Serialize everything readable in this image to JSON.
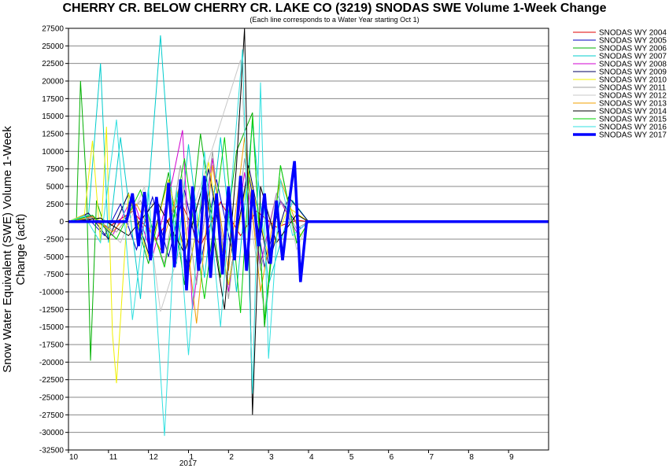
{
  "chart_data": {
    "type": "line",
    "title": "CHERRY CR. BELOW CHERRY CR. LAKE CO (3219) SNODAS SWE Volume 1-Week Change",
    "subtitle": "(Each line corresponds to a Water Year starting Oct 1)",
    "ylabel": "Snow Water Equivalent (SWE) Volume 1-Week Change (acft)",
    "xlabel": "",
    "x_tick_labels": [
      "10",
      "11",
      "12",
      "1",
      "2",
      "3",
      "4",
      "5",
      "6",
      "7",
      "8",
      "9"
    ],
    "x_year_label": "2017",
    "ylim": [
      -32500,
      27500
    ],
    "y_ticks": [
      27500,
      25000,
      22500,
      20000,
      17500,
      15000,
      12500,
      10000,
      7500,
      5000,
      2500,
      0,
      -2500,
      -5000,
      -7500,
      -10000,
      -12500,
      -15000,
      -17500,
      -20000,
      -22500,
      -25000,
      -27500,
      -30000,
      -32500
    ],
    "grid": true,
    "legend_placement": "top-right",
    "series": [
      {
        "name": "SNODAS WY 2004",
        "color": "#e00000",
        "x": [
          0.0,
          0.5,
          1.0,
          1.6,
          2.2,
          2.8,
          3.3,
          3.8,
          4.3,
          4.7,
          5.2,
          5.7,
          6.0,
          12.0
        ],
        "values": [
          0,
          300,
          -800,
          1500,
          -2500,
          3000,
          -3500,
          2800,
          -2000,
          1500,
          -800,
          200,
          0,
          0
        ]
      },
      {
        "name": "SNODAS WY 2005",
        "color": "#0000c0",
        "x": [
          0.0,
          0.4,
          0.9,
          1.3,
          1.7,
          2.1,
          2.5,
          2.9,
          3.3,
          3.7,
          4.1,
          4.5,
          4.9,
          5.3,
          5.8,
          6.0,
          12.0
        ],
        "values": [
          0,
          1000,
          -2000,
          2500,
          -4000,
          3500,
          -5000,
          4500,
          -6000,
          6000,
          -4500,
          7000,
          -6500,
          3000,
          -1000,
          0,
          0
        ]
      },
      {
        "name": "SNODAS WY 2006",
        "color": "#00b000",
        "x": [
          0.0,
          0.2,
          0.3,
          0.45,
          0.55,
          0.7,
          1.0,
          1.5,
          2.0,
          2.5,
          2.9,
          3.3,
          3.8,
          4.2,
          4.6,
          4.9,
          5.3,
          5.7,
          6.0,
          12.0
        ],
        "values": [
          0,
          500,
          20000,
          5000,
          -19800,
          3000,
          -2500,
          4000,
          -6000,
          7000,
          -9000,
          12500,
          -8000,
          10000,
          15500,
          -15000,
          8000,
          -3000,
          0,
          0
        ]
      },
      {
        "name": "SNODAS WY 2007",
        "color": "#00cccc",
        "x": [
          0.0,
          0.5,
          0.8,
          1.0,
          1.3,
          1.8,
          2.3,
          2.7,
          3.0,
          3.4,
          3.8,
          4.2,
          4.6,
          5.0,
          5.6,
          6.0,
          12.0
        ],
        "values": [
          0,
          800,
          22500,
          -3000,
          12000,
          -11000,
          26500,
          -6000,
          11000,
          -8000,
          12000,
          -10000,
          14000,
          -9000,
          3000,
          0,
          0
        ]
      },
      {
        "name": "SNODAS WY 2008",
        "color": "#d000d0",
        "x": [
          0.0,
          0.6,
          1.1,
          1.6,
          2.1,
          2.6,
          2.85,
          3.1,
          3.6,
          4.0,
          4.4,
          4.8,
          5.2,
          5.7,
          6.0,
          12.0
        ],
        "values": [
          0,
          800,
          -2000,
          3500,
          -5000,
          6000,
          13000,
          -12500,
          9000,
          -10000,
          7000,
          -6000,
          4000,
          -1500,
          0,
          0
        ]
      },
      {
        "name": "SNODAS WY 2009",
        "color": "#000060",
        "x": [
          0.0,
          0.5,
          1.0,
          1.5,
          2.0,
          2.5,
          3.0,
          3.5,
          4.0,
          4.5,
          5.0,
          5.5,
          6.0,
          12.0
        ],
        "values": [
          0,
          1200,
          -2500,
          4000,
          -4500,
          6000,
          -7000,
          7500,
          -9000,
          8000,
          -6000,
          3500,
          0,
          0
        ]
      },
      {
        "name": "SNODAS WY 2010",
        "color": "#f0f000",
        "x": [
          0.0,
          0.4,
          0.6,
          0.8,
          0.95,
          1.1,
          1.2,
          1.5,
          2.0,
          2.5,
          3.0,
          3.5,
          4.0,
          4.5,
          5.0,
          5.5,
          6.0,
          12.0
        ],
        "values": [
          0,
          1000,
          11500,
          -3000,
          13500,
          -16000,
          -23000,
          4000,
          -5000,
          6000,
          -7500,
          8500,
          -9000,
          7000,
          -5000,
          2000,
          0,
          0
        ]
      },
      {
        "name": "SNODAS WY 2011",
        "color": "#a0a0a0",
        "x": [
          0.0,
          0.6,
          1.2,
          1.8,
          2.4,
          2.8,
          3.2,
          3.6,
          4.0,
          4.4,
          4.8,
          5.2,
          5.7,
          6.0,
          12.0
        ],
        "values": [
          0,
          600,
          -1500,
          3000,
          -6000,
          8000,
          -9000,
          10000,
          -11000,
          9000,
          -7000,
          4000,
          -1000,
          0,
          0
        ]
      },
      {
        "name": "SNODAS WY 2012",
        "color": "#c8c8c8",
        "x": [
          0.0,
          0.7,
          1.3,
          1.9,
          2.3,
          4.3,
          4.5,
          4.9,
          5.3,
          5.7,
          6.0,
          12.0
        ],
        "values": [
          0,
          500,
          -3000,
          5000,
          -12800,
          23000,
          2000,
          -13000,
          8000,
          -4000,
          0,
          0
        ]
      },
      {
        "name": "SNODAS WY 2013",
        "color": "#f0a000",
        "x": [
          0.0,
          0.6,
          1.1,
          1.7,
          2.3,
          2.8,
          3.2,
          3.6,
          4.0,
          4.4,
          4.8,
          5.3,
          5.8,
          6.0,
          12.0
        ],
        "values": [
          0,
          700,
          -1500,
          2500,
          -4000,
          5500,
          -14500,
          8000,
          -7000,
          12000,
          -10000,
          6000,
          -2000,
          0,
          0
        ]
      },
      {
        "name": "SNODAS WY 2014",
        "color": "#000000",
        "x": [
          0.0,
          0.8,
          1.5,
          2.2,
          2.9,
          3.4,
          3.9,
          4.2,
          4.4,
          4.6,
          4.8,
          5.2,
          5.7,
          6.0,
          12.0
        ],
        "values": [
          0,
          500,
          -2000,
          3000,
          -4500,
          6000,
          -12500,
          8000,
          27500,
          -27500,
          5000,
          -3000,
          1000,
          0,
          0
        ]
      },
      {
        "name": "SNODAS WY 2015",
        "color": "#00d000",
        "x": [
          0.0,
          0.6,
          1.2,
          1.8,
          2.4,
          2.9,
          3.4,
          3.9,
          4.3,
          4.6,
          4.9,
          5.3,
          5.7,
          6.0,
          12.0
        ],
        "values": [
          0,
          900,
          -2500,
          4500,
          -6500,
          9000,
          -11000,
          12000,
          -13000,
          15000,
          -14000,
          8000,
          -3000,
          0,
          0
        ]
      },
      {
        "name": "SNODAS WY 2016",
        "color": "#30e0e0",
        "x": [
          0.0,
          0.4,
          0.8,
          1.2,
          1.6,
          2.0,
          2.4,
          2.7,
          3.0,
          3.4,
          3.8,
          4.1,
          4.35,
          4.6,
          4.8,
          5.0,
          5.3,
          5.6,
          6.0,
          12.0
        ],
        "values": [
          0,
          800,
          -3000,
          14500,
          -14000,
          5000,
          -30500,
          4500,
          -19000,
          10000,
          -15000,
          7000,
          24500,
          -24500,
          19800,
          -19500,
          6000,
          -2000,
          0,
          0
        ]
      },
      {
        "name": "SNODAS WY 2017",
        "color": "#0000ff",
        "x": [
          0.0,
          1.45,
          1.6,
          1.75,
          1.9,
          2.05,
          2.2,
          2.35,
          2.5,
          2.65,
          2.8,
          2.95,
          3.1,
          3.25,
          3.4,
          3.55,
          3.7,
          3.85,
          4.0,
          4.15,
          4.3,
          4.45,
          4.6,
          4.75,
          4.9,
          5.05,
          5.2,
          5.35,
          5.5,
          5.65,
          5.8,
          5.95,
          6.0,
          12.0
        ],
        "values": [
          0,
          0,
          4000,
          -3500,
          4200,
          -5500,
          3500,
          -4500,
          5500,
          -6500,
          6000,
          -9800,
          5000,
          -7000,
          6500,
          -8000,
          4000,
          -7500,
          5000,
          -5500,
          6500,
          -7000,
          4500,
          -3500,
          4000,
          -6000,
          3000,
          -5500,
          2000,
          8600,
          -8600,
          0,
          0,
          0
        ]
      }
    ]
  }
}
